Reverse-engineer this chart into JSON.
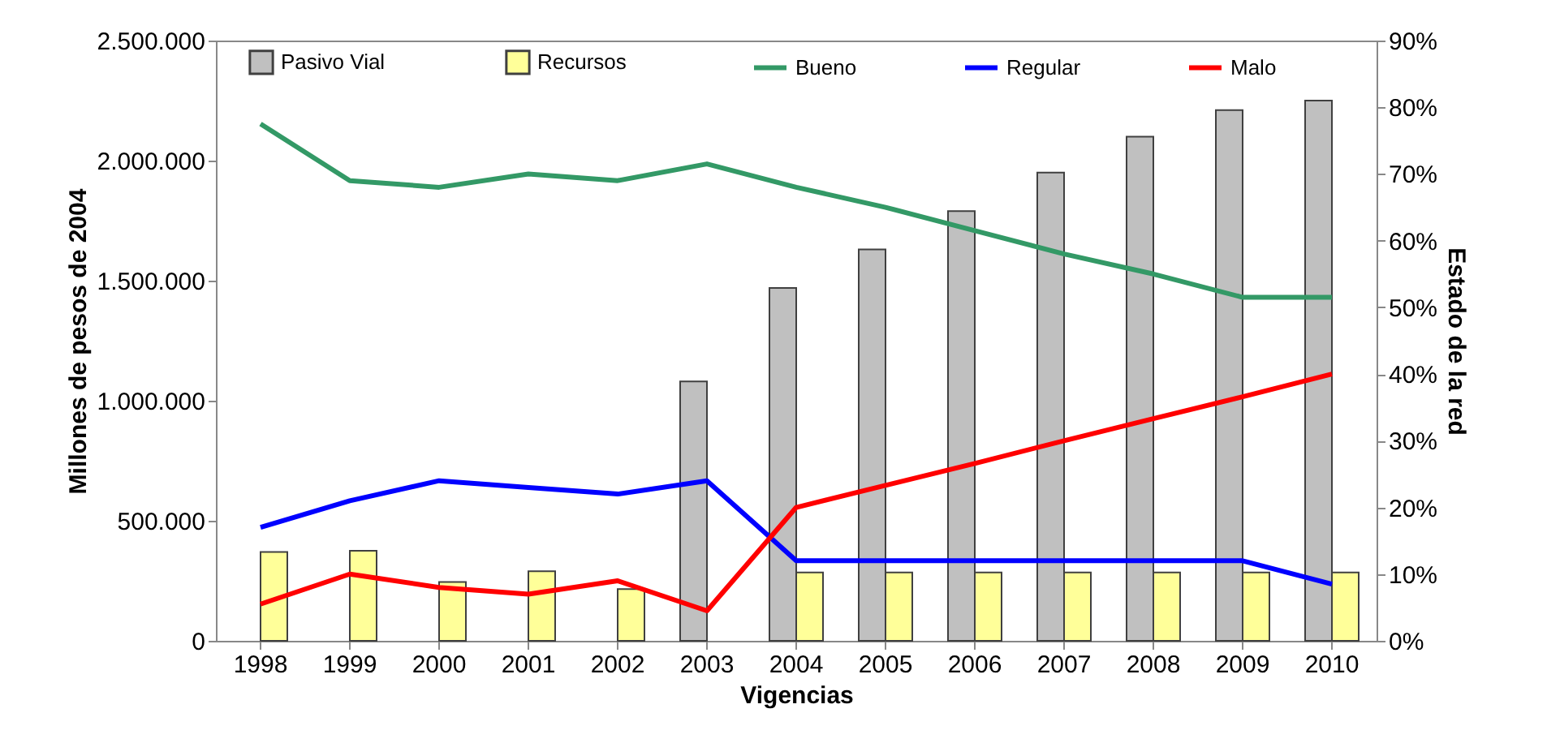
{
  "chart_data": {
    "type": "bar",
    "xlabel": "Vigencias",
    "ylabel": "Millones de pesos de 2004",
    "y2label": "Estado de la red",
    "categories": [
      "1998",
      "1999",
      "2000",
      "2001",
      "2002",
      "2003",
      "2004",
      "2005",
      "2006",
      "2007",
      "2008",
      "2009",
      "2010"
    ],
    "series": [
      {
        "name": "Pasivo Vial",
        "color": "#c0c0c0",
        "values": [
          null,
          null,
          null,
          null,
          null,
          1080000,
          1470000,
          1630000,
          1790000,
          1950000,
          2100000,
          2210000,
          2250000
        ]
      },
      {
        "name": "Recursos",
        "color": "#ffff99",
        "values": [
          370000,
          375000,
          245000,
          290000,
          215000,
          null,
          285000,
          285000,
          285000,
          285000,
          285000,
          285000,
          285000
        ]
      },
      {
        "name": "Bueno",
        "type": "line",
        "axis": "y2",
        "color": "#339966",
        "values": [
          77.5,
          69,
          68,
          70,
          69,
          71.5,
          68,
          65,
          61.5,
          58,
          55,
          51.5,
          51.5
        ]
      },
      {
        "name": "Regular",
        "type": "line",
        "axis": "y2",
        "color": "#0000ff",
        "values": [
          17,
          21,
          24,
          23,
          22,
          24,
          12,
          12,
          12,
          12,
          12,
          12,
          8.5
        ]
      },
      {
        "name": "Malo",
        "type": "line",
        "axis": "y2",
        "color": "#ff0000",
        "values": [
          5.5,
          10,
          8,
          7,
          9,
          4.5,
          20,
          23.3,
          26.6,
          30,
          33.3,
          36.6,
          40
        ]
      }
    ],
    "ylim": [
      0,
      2500000
    ],
    "yticks": [
      {
        "value": 0,
        "label": "0"
      },
      {
        "value": 500000,
        "label": "500.000"
      },
      {
        "value": 1000000,
        "label": "1.000.000"
      },
      {
        "value": 1500000,
        "label": "1.500.000"
      },
      {
        "value": 2000000,
        "label": "2.000.000"
      },
      {
        "value": 2500000,
        "label": "2.500.000"
      }
    ],
    "y2lim": [
      0,
      90
    ],
    "y2ticks": [
      {
        "value": 0,
        "label": "0%"
      },
      {
        "value": 10,
        "label": "10%"
      },
      {
        "value": 20,
        "label": "20%"
      },
      {
        "value": 30,
        "label": "30%"
      },
      {
        "value": 40,
        "label": "40%"
      },
      {
        "value": 50,
        "label": "50%"
      },
      {
        "value": 60,
        "label": "60%"
      },
      {
        "value": 70,
        "label": "70%"
      },
      {
        "value": 80,
        "label": "80%"
      },
      {
        "value": 90,
        "label": "90%"
      }
    ],
    "legend": "top",
    "grid": false
  }
}
